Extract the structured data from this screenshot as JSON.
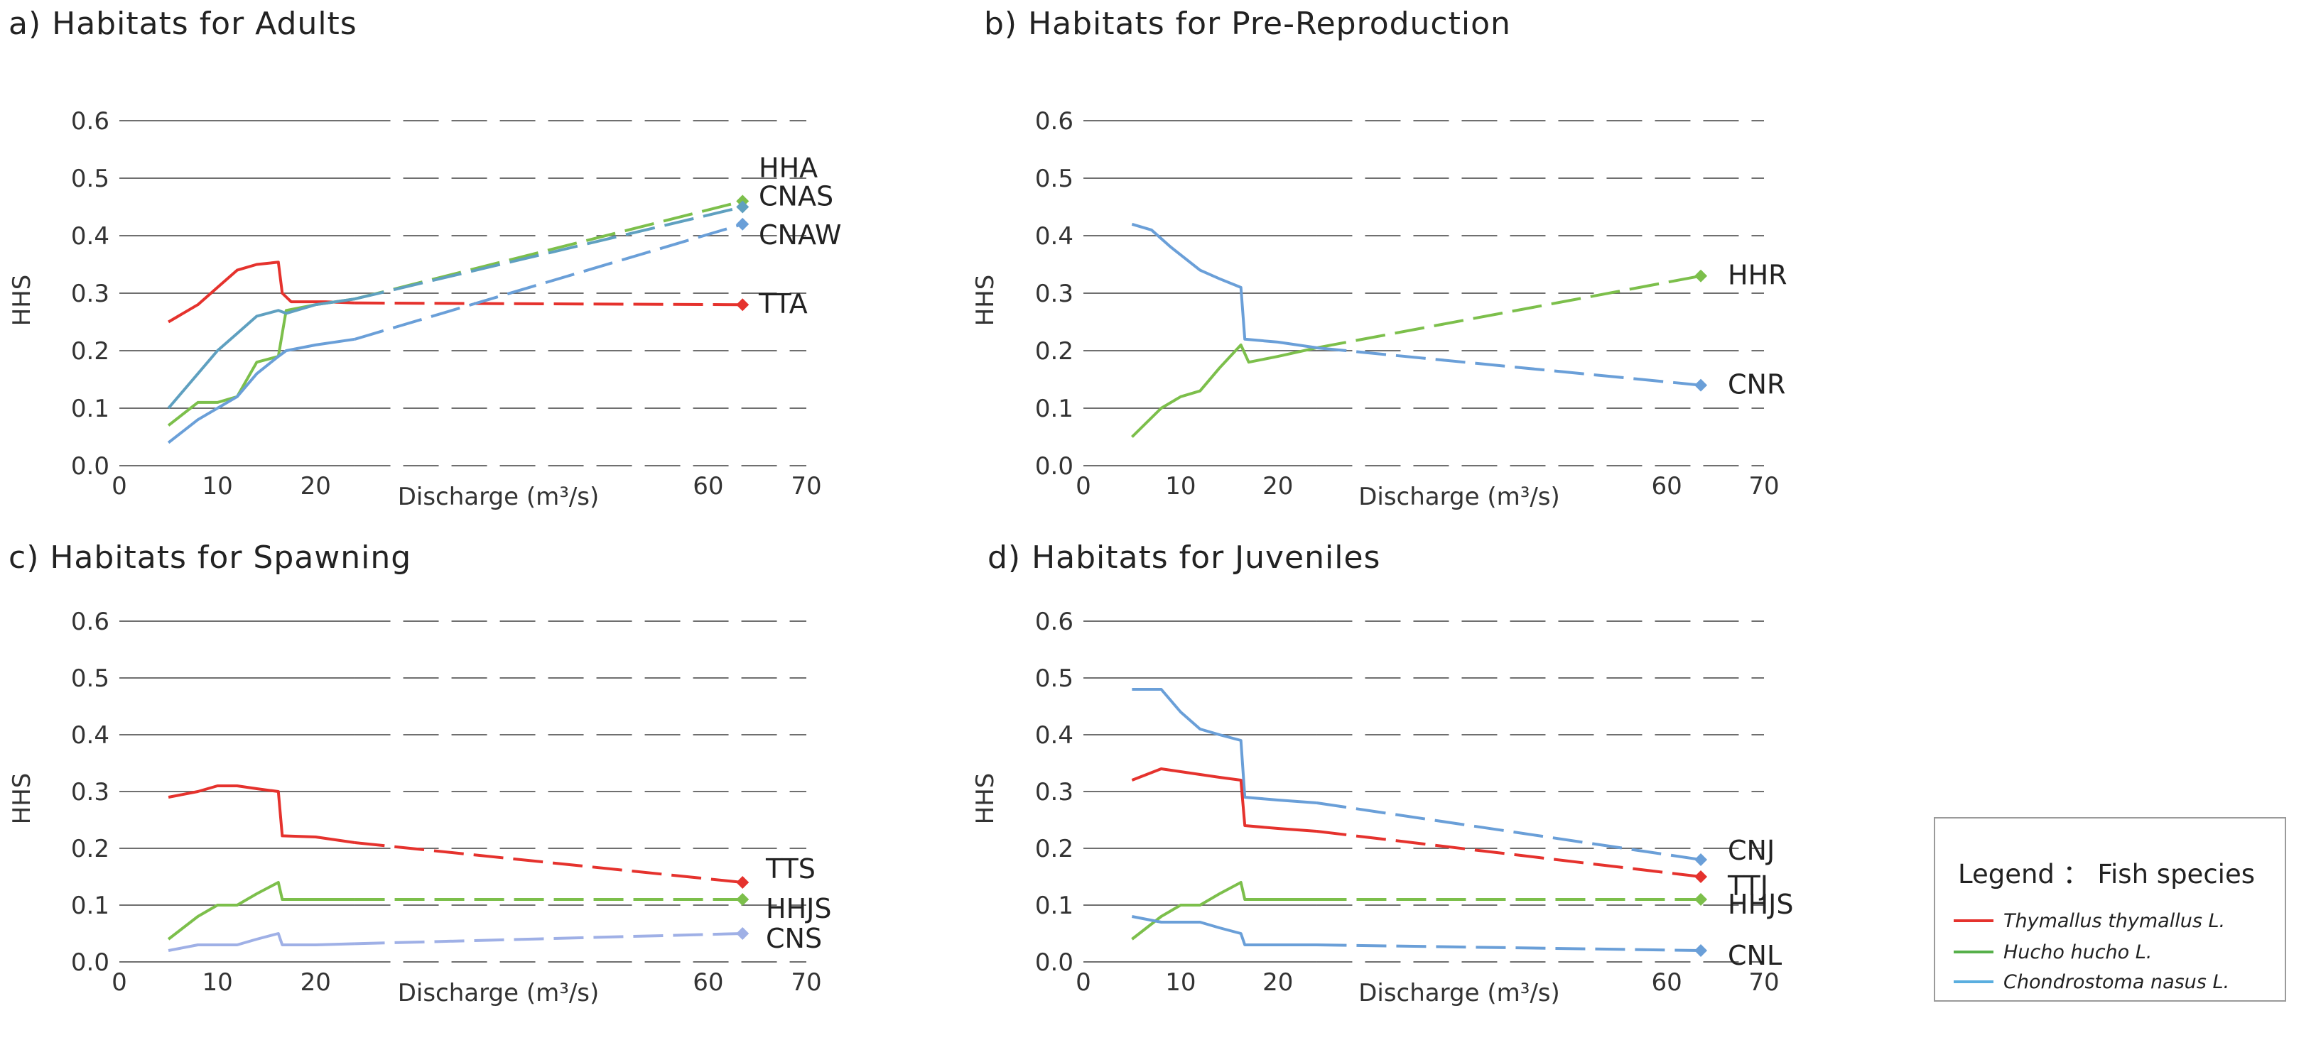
{
  "colors": {
    "red": "#e5322d",
    "green": "#7cbf4b",
    "blue": "#6a9fd8",
    "lavender": "#9fb0e6",
    "grid": "#6f6f6f"
  },
  "legend": {
    "title": "Legend ： Fish species",
    "items": [
      {
        "label": "Thymallus thymallus L.",
        "color": "#e5322d"
      },
      {
        "label": "Hucho hucho L.",
        "color": "#56b04a"
      },
      {
        "label": "Chondrostoma nasus L.",
        "color": "#5aaedf"
      }
    ]
  },
  "chart_data": [
    {
      "type": "line",
      "title": "a) Habitats for Adults",
      "xlabel": "Discharge (m³/s)",
      "ylabel": "HHS",
      "xlim": [
        0,
        70
      ],
      "ylim": [
        0,
        0.6
      ],
      "xticks": [
        "0",
        "10",
        "20",
        "60",
        "70"
      ],
      "xtick_values": [
        0,
        10,
        20,
        60,
        70
      ],
      "yticks": [
        "0.0",
        "0.1",
        "0.2",
        "0.3",
        "0.4",
        "0.5",
        "0.6"
      ],
      "ytick_values": [
        0,
        0.1,
        0.2,
        0.3,
        0.4,
        0.5,
        0.6
      ],
      "series": [
        {
          "name": "TTA",
          "color": "#e5322d",
          "solid_x": [
            5,
            8,
            10,
            12,
            14,
            16.2,
            16.6,
            17.5,
            21,
            24
          ],
          "solid_y": [
            0.25,
            0.28,
            0.31,
            0.34,
            0.35,
            0.354,
            0.3,
            0.285,
            0.285,
            0.283
          ],
          "end": [
            63.5,
            0.28
          ],
          "label": "TTA"
        },
        {
          "name": "HHA",
          "color": "#7cbf4b",
          "solid_x": [
            5,
            8,
            10,
            12,
            14,
            16.2,
            17,
            20,
            24
          ],
          "solid_y": [
            0.07,
            0.11,
            0.11,
            0.12,
            0.18,
            0.19,
            0.27,
            0.28,
            0.29
          ],
          "end": [
            63.5,
            0.46
          ],
          "label": "HHA"
        },
        {
          "name": "CNAS",
          "color": "#5fa0c0",
          "solid_x": [
            5,
            8,
            10,
            12,
            14,
            16.2,
            17,
            20,
            24
          ],
          "solid_y": [
            0.1,
            0.16,
            0.2,
            0.23,
            0.26,
            0.27,
            0.265,
            0.28,
            0.29
          ],
          "end": [
            63.5,
            0.45
          ],
          "label": "CNAS"
        },
        {
          "name": "CNAW",
          "color": "#6a9fd8",
          "solid_x": [
            5,
            8,
            10,
            12,
            14,
            16.2,
            17,
            20,
            24
          ],
          "solid_y": [
            0.04,
            0.08,
            0.1,
            0.12,
            0.16,
            0.19,
            0.2,
            0.21,
            0.22
          ],
          "end": [
            63.5,
            0.42
          ],
          "label": "CNAW"
        }
      ]
    },
    {
      "type": "line",
      "title": "b) Habitats for Pre-Reproduction",
      "xlabel": "Discharge (m³/s)",
      "ylabel": "HHS",
      "xlim": [
        0,
        70
      ],
      "ylim": [
        0,
        0.6
      ],
      "xticks": [
        "0",
        "10",
        "20",
        "60",
        "70"
      ],
      "xtick_values": [
        0,
        10,
        20,
        60,
        70
      ],
      "yticks": [
        "0.0",
        "0.1",
        "0.2",
        "0.3",
        "0.4",
        "0.5",
        "0.6"
      ],
      "ytick_values": [
        0,
        0.1,
        0.2,
        0.3,
        0.4,
        0.5,
        0.6
      ],
      "series": [
        {
          "name": "HHR",
          "color": "#7cbf4b",
          "solid_x": [
            5,
            8,
            10,
            12,
            14,
            16.2,
            17,
            20,
            24
          ],
          "solid_y": [
            0.05,
            0.1,
            0.12,
            0.13,
            0.17,
            0.21,
            0.18,
            0.19,
            0.205
          ],
          "end": [
            63.5,
            0.33
          ],
          "label": "HHR"
        },
        {
          "name": "CNR",
          "color": "#6a9fd8",
          "solid_x": [
            5,
            7,
            9,
            12,
            14,
            16.2,
            16.6,
            20,
            24
          ],
          "solid_y": [
            0.42,
            0.41,
            0.38,
            0.34,
            0.325,
            0.31,
            0.22,
            0.215,
            0.205
          ],
          "end": [
            63.5,
            0.14
          ],
          "label": "CNR"
        }
      ]
    },
    {
      "type": "line",
      "title": "c) Habitats for Spawning",
      "xlabel": "Discharge (m³/s)",
      "ylabel": "HHS",
      "xlim": [
        0,
        70
      ],
      "ylim": [
        0,
        0.6
      ],
      "xticks": [
        "0",
        "10",
        "20",
        "60",
        "70"
      ],
      "xtick_values": [
        0,
        10,
        20,
        60,
        70
      ],
      "yticks": [
        "0.0",
        "0.1",
        "0.2",
        "0.3",
        "0.4",
        "0.5",
        "0.6"
      ],
      "ytick_values": [
        0,
        0.1,
        0.2,
        0.3,
        0.4,
        0.5,
        0.6
      ],
      "series": [
        {
          "name": "TTS",
          "color": "#e5322d",
          "solid_x": [
            5,
            8,
            10,
            12,
            14,
            16.2,
            16.6,
            20,
            24
          ],
          "solid_y": [
            0.29,
            0.3,
            0.31,
            0.31,
            0.305,
            0.3,
            0.222,
            0.22,
            0.21
          ],
          "end": [
            63.5,
            0.14
          ],
          "label": "TTS"
        },
        {
          "name": "HHJS",
          "color": "#7cbf4b",
          "solid_x": [
            5,
            8,
            10,
            12,
            14,
            16.2,
            16.6,
            20,
            24
          ],
          "solid_y": [
            0.04,
            0.08,
            0.1,
            0.1,
            0.12,
            0.14,
            0.11,
            0.11,
            0.11
          ],
          "end": [
            63.5,
            0.11
          ],
          "label": "HHJS"
        },
        {
          "name": "CNS",
          "color": "#9fb0e6",
          "solid_x": [
            5,
            8,
            10,
            12,
            14,
            16.2,
            16.6,
            20,
            24
          ],
          "solid_y": [
            0.02,
            0.03,
            0.03,
            0.03,
            0.04,
            0.05,
            0.03,
            0.03,
            0.032
          ],
          "end": [
            63.5,
            0.05
          ],
          "label": "CNS"
        }
      ]
    },
    {
      "type": "line",
      "title": "d) Habitats for Juveniles",
      "xlabel": "Discharge (m³/s)",
      "ylabel": "HHS",
      "xlim": [
        0,
        70
      ],
      "ylim": [
        0,
        0.6
      ],
      "xticks": [
        "0",
        "10",
        "20",
        "60",
        "70"
      ],
      "xtick_values": [
        0,
        10,
        20,
        60,
        70
      ],
      "yticks": [
        "0.0",
        "0.1",
        "0.2",
        "0.3",
        "0.4",
        "0.5",
        "0.6"
      ],
      "ytick_values": [
        0,
        0.1,
        0.2,
        0.3,
        0.4,
        0.5,
        0.6
      ],
      "series": [
        {
          "name": "CNJ",
          "color": "#6a9fd8",
          "solid_x": [
            5,
            8,
            10,
            12,
            14,
            16.2,
            16.6,
            20,
            24
          ],
          "solid_y": [
            0.48,
            0.48,
            0.44,
            0.41,
            0.4,
            0.39,
            0.29,
            0.285,
            0.28
          ],
          "end": [
            63.5,
            0.18
          ],
          "label": "CNJ"
        },
        {
          "name": "TTJ",
          "color": "#e5322d",
          "solid_x": [
            5,
            8,
            10,
            12,
            14,
            16.2,
            16.6,
            20,
            24
          ],
          "solid_y": [
            0.32,
            0.34,
            0.335,
            0.33,
            0.325,
            0.32,
            0.24,
            0.235,
            0.23
          ],
          "end": [
            63.5,
            0.15
          ],
          "label": "TTJ"
        },
        {
          "name": "HHJS",
          "color": "#7cbf4b",
          "solid_x": [
            5,
            8,
            10,
            12,
            14,
            16.2,
            16.6,
            20,
            24
          ],
          "solid_y": [
            0.04,
            0.08,
            0.1,
            0.1,
            0.12,
            0.14,
            0.11,
            0.11,
            0.11
          ],
          "end": [
            63.5,
            0.11
          ],
          "label": "HHJS"
        },
        {
          "name": "CNL",
          "color": "#6a9fd8",
          "solid_x": [
            5,
            8,
            10,
            12,
            14,
            16.2,
            16.6,
            20,
            24
          ],
          "solid_y": [
            0.08,
            0.07,
            0.07,
            0.07,
            0.06,
            0.05,
            0.03,
            0.03,
            0.03
          ],
          "end": [
            63.5,
            0.02
          ],
          "label": "CNL"
        }
      ]
    }
  ]
}
